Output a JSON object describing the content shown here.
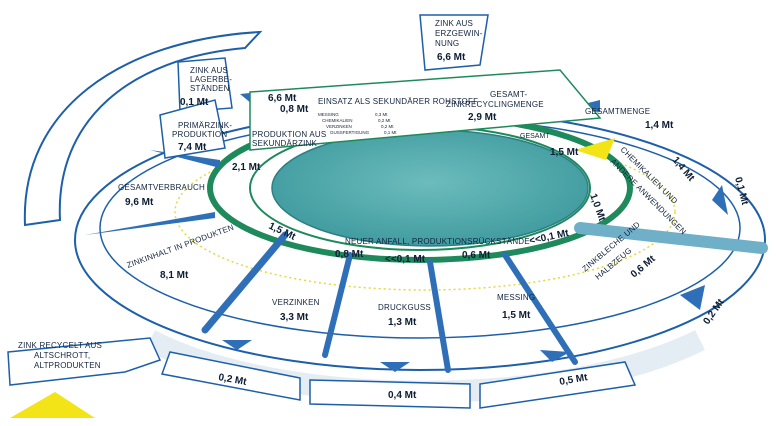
{
  "diagram": {
    "sources": {
      "zink_erzgewinnung": {
        "label_lines": [
          "ZINK AUS",
          "ERZGEWIN-",
          "NUNG"
        ],
        "value": "6,6 Mt"
      },
      "zink_lagerbestaende": {
        "label_lines": [
          "ZINK AUS",
          "LAGERBE-",
          "STÄNDEN"
        ],
        "value": "0,1 Mt"
      },
      "einsatz_sekundaer": {
        "value_a": "6,6 Mt",
        "value_b": "0,8 Mt",
        "label": "EINSATZ ALS SEKUNDÄRER ROHSTOFF"
      },
      "sekundaer_details": [
        {
          "label": "MESSING",
          "value": "0,3 Mt"
        },
        {
          "label": "CHEMIKALIEN",
          "value": "0,2 Mt"
        },
        {
          "label": "VERZINKEN",
          "value": "0,2 Mt"
        },
        {
          "label": "GUSSFERTIGUNG",
          "value": "0,1 Mt"
        }
      ],
      "primaer_produktion": {
        "label_lines": [
          "PRIMÄRZINK-",
          "PRODUKTION"
        ],
        "value": "7,4 Mt"
      },
      "produktion_sekundaer": {
        "label_lines": [
          "PRODUKTION AUS",
          "SEKUNDÄRZINK"
        ],
        "value": "2,1 Mt"
      },
      "gesamtverbrauch": {
        "label": "GESAMTVERBRAUCH",
        "value": "9,6 Mt"
      },
      "recycling_gesamt": {
        "label_lines": [
          "GESAMT-",
          "ZINKRECYCLINGMENGE"
        ],
        "value": "2,9 Mt"
      },
      "gesamtmenge": {
        "label": "GESAMTMENGE",
        "value": "1,4 Mt"
      },
      "gesamt_small": {
        "label": "GESAMT",
        "value": "1,5 Mt"
      },
      "value_1_0": "1,0 Mt",
      "chemikalien": {
        "label_lines": [
          "CHEMIKALIEN UND",
          "ANDERE ANWENDUNGEN"
        ],
        "value": "1,4 Mt"
      },
      "outer_right": "0,1 Mt",
      "zinkinhalt": {
        "label": "ZINKINHALT IN PRODUKTEN",
        "value": "8,1 Mt",
        "ring_value": "1,5 Mt"
      },
      "neuer_anfall": {
        "label": "NEUER ANFALL, PRODUKTIONSRÜCKSTÄNDE"
      },
      "ring_values": [
        "0,8 Mt",
        "<<0,1 Mt",
        "0,6 Mt",
        "<<0,1 Mt"
      ],
      "products": [
        {
          "label": "VERZINKEN",
          "value": "3,3 Mt"
        },
        {
          "label": "DRUCKGUSS",
          "value": "1,3 Mt"
        },
        {
          "label": "MESSING",
          "value": "1,5 Mt"
        },
        {
          "label_lines": [
            "ZINKBLECHE UND",
            "HALBZEUG"
          ],
          "value": "0,6 Mt"
        }
      ],
      "recycelt": {
        "label_lines": [
          "ZINK RECYCELT AUS",
          "ALTSCHROTT,",
          "ALTPRODUKTEN"
        ]
      },
      "bottom_boxes": [
        "0,2 Mt",
        "0,4 Mt",
        "0,5 Mt",
        "0,2 Mt"
      ]
    },
    "colors": {
      "center_fill": "#4aa6a8",
      "ring_green": "#1e8a5c",
      "flow_blue": "#2f6fb8",
      "outline": "#1d5fa8",
      "accent_yellow": "#f2e417"
    }
  }
}
